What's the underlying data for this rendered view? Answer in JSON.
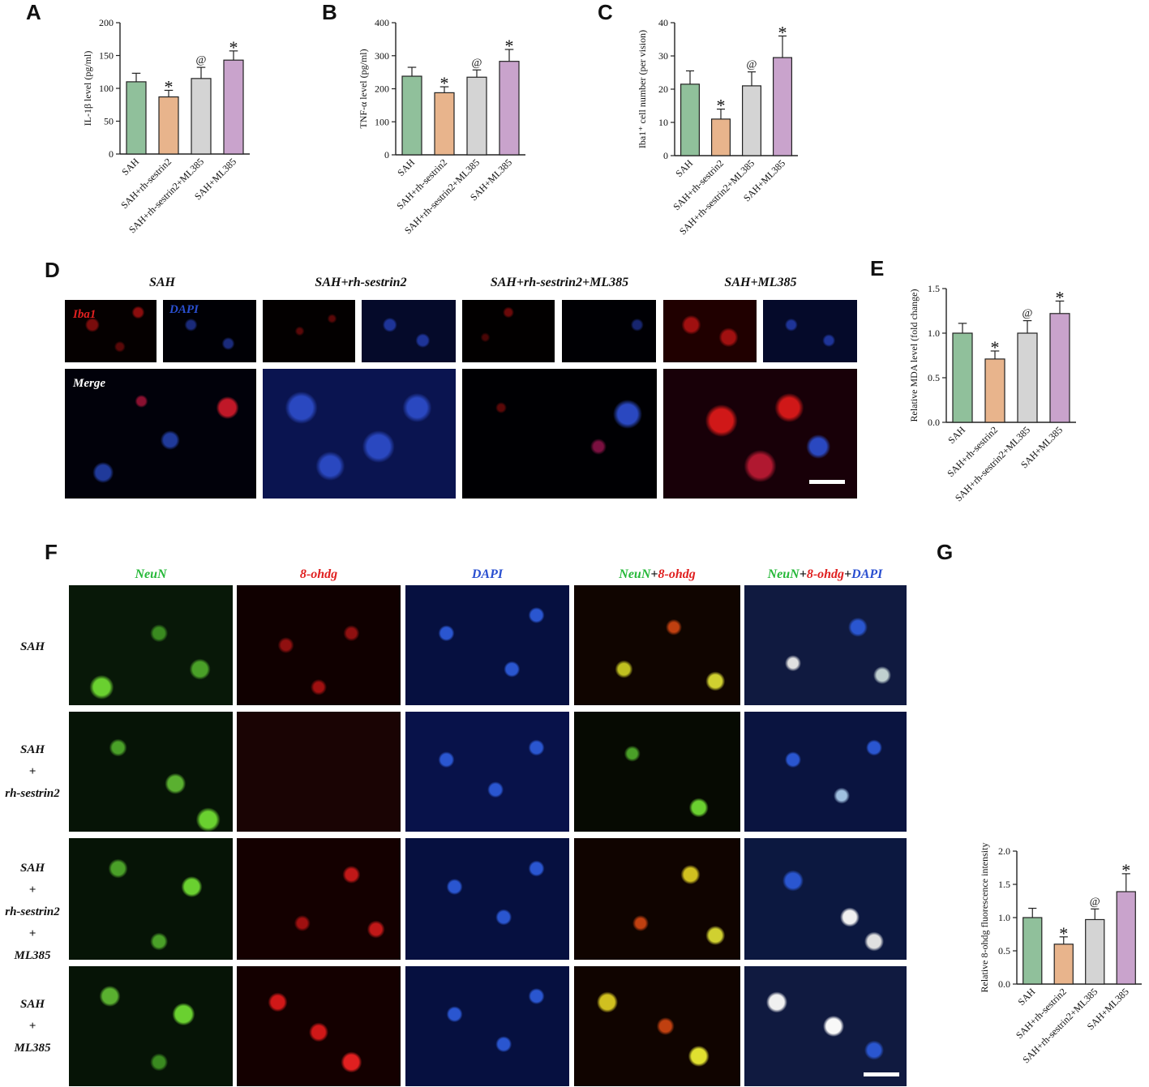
{
  "panel_letters": {
    "A": "A",
    "B": "B",
    "C": "C",
    "D": "D",
    "E": "E",
    "F": "F",
    "G": "G"
  },
  "colors": {
    "sah": "#90c09b",
    "rh": "#e8b48c",
    "rh_ml": "#d4d4d4",
    "ml": "#c9a3cc",
    "stroke": "#222222",
    "iba1_label": "#e02020",
    "dapi_label": "#2a4fd0",
    "neun_label": "#25b838",
    "ohdg_label": "#e02020",
    "white_label": "#ffffff"
  },
  "chart_data": [
    {
      "id": "A",
      "type": "bar",
      "categories": [
        "SAH",
        "SAH+rh-sestrin2",
        "SAH+rh-sestrin2+ML385",
        "SAH+ML385"
      ],
      "values": [
        110,
        87,
        115,
        143
      ],
      "errors": [
        13,
        10,
        17,
        14
      ],
      "annotations": [
        "",
        "*",
        "@",
        "*"
      ],
      "ylabel": "IL-1β level (pg/ml)",
      "ylim": [
        0,
        200
      ],
      "yticks": [
        0,
        50,
        100,
        150,
        200
      ]
    },
    {
      "id": "B",
      "type": "bar",
      "categories": [
        "SAH",
        "SAH+rh-sestrin2",
        "SAH+rh-sestrin2+ML385",
        "SAH+ML385"
      ],
      "values": [
        238,
        188,
        235,
        283
      ],
      "errors": [
        27,
        18,
        22,
        36
      ],
      "annotations": [
        "",
        "*",
        "@",
        "*"
      ],
      "ylabel": "TNF-α level (pg/ml)",
      "ylim": [
        0,
        400
      ],
      "yticks": [
        0,
        100,
        200,
        300,
        400
      ]
    },
    {
      "id": "C",
      "type": "bar",
      "categories": [
        "SAH",
        "SAH+rh-sestrin2",
        "SAH+rh-sestrin2+ML385",
        "SAH+ML385"
      ],
      "values": [
        21.5,
        11,
        21,
        29.5
      ],
      "errors": [
        4,
        3,
        4.2,
        6.5
      ],
      "annotations": [
        "",
        "*",
        "@",
        "*"
      ],
      "ylabel": "Iba1⁺ cell number (per vision)",
      "ylim": [
        0,
        40
      ],
      "yticks": [
        0,
        10,
        20,
        30,
        40
      ]
    },
    {
      "id": "E",
      "type": "bar",
      "categories": [
        "SAH",
        "SAH+rh-sestrin2",
        "SAH+rh-sestrin2+ML385",
        "SAH+ML385"
      ],
      "values": [
        1.0,
        0.71,
        1.0,
        1.22
      ],
      "errors": [
        0.11,
        0.09,
        0.14,
        0.14
      ],
      "annotations": [
        "",
        "*",
        "@",
        "*"
      ],
      "ylabel": "Relative MDA level (fold change)",
      "ylim": [
        0,
        1.5
      ],
      "yticks": [
        "0.0",
        "0.5",
        "1.0",
        "1.5"
      ]
    },
    {
      "id": "G",
      "type": "bar",
      "categories": [
        "SAH",
        "SAH+rh-sestrin2",
        "SAH+rh-sestrin2+ML385",
        "SAH+ML385"
      ],
      "values": [
        1.0,
        0.6,
        0.97,
        1.39
      ],
      "errors": [
        0.14,
        0.11,
        0.16,
        0.27
      ],
      "annotations": [
        "",
        "*",
        "@",
        "*"
      ],
      "ylabel": "Relative 8-ohdg fluorescence intensity",
      "ylim": [
        0,
        2.0
      ],
      "yticks": [
        "0.0",
        "0.5",
        "1.0",
        "1.5",
        "2.0"
      ]
    }
  ],
  "panel_d": {
    "columns": [
      "SAH",
      "SAH+rh-sestrin2",
      "SAH+rh-sestrin2+ML385",
      "SAH+ML385"
    ],
    "iba1_label": "Iba1",
    "dapi_label": "DAPI",
    "merge_label": "Merge"
  },
  "panel_f": {
    "col_neun": "NeuN",
    "col_ohdg": "8-ohdg",
    "col_dapi": "DAPI",
    "plus": "+",
    "rows": {
      "r1": [
        "SAH"
      ],
      "r2": [
        "SAH",
        "+",
        "rh-sestrin2"
      ],
      "r3": [
        "SAH",
        "+",
        "rh-sestrin2",
        "+",
        "ML385"
      ],
      "r4": [
        "SAH",
        "+",
        "ML385"
      ]
    }
  }
}
